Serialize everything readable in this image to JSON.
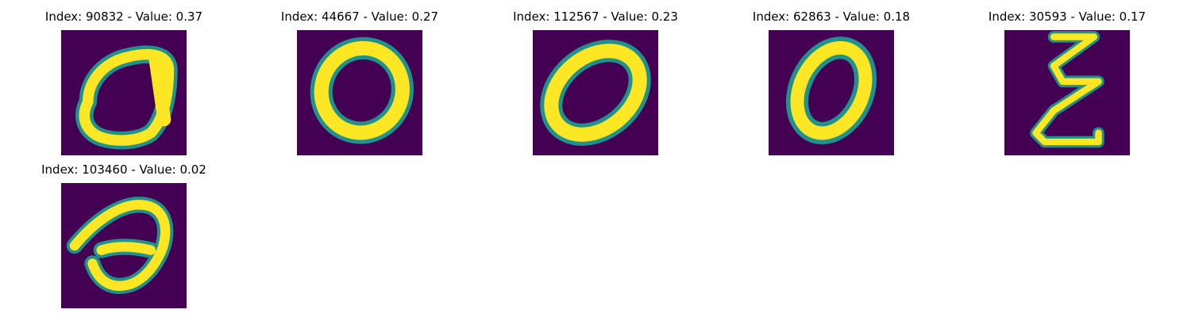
{
  "colormap": {
    "name": "viridis",
    "background": "#440154",
    "mid": "#21918c",
    "peak": "#fde725"
  },
  "panels": [
    {
      "title": "Index: 90832 - Value: 0.37",
      "index": 90832,
      "value": 0.37
    },
    {
      "title": "Index: 44667 - Value: 0.27",
      "index": 44667,
      "value": 0.27
    },
    {
      "title": "Index: 112567 - Value: 0.23",
      "index": 112567,
      "value": 0.23
    },
    {
      "title": "Index: 62863 - Value: 0.18",
      "index": 62863,
      "value": 0.18
    },
    {
      "title": "Index: 30593 - Value: 0.17",
      "index": 30593,
      "value": 0.17
    },
    {
      "title": "Index: 103460 - Value: 0.02",
      "index": 103460,
      "value": 0.02
    }
  ]
}
